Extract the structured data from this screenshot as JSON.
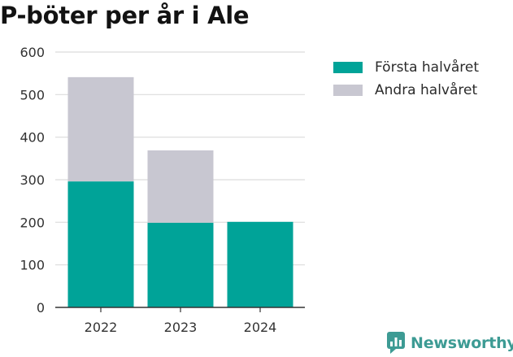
{
  "colors": {
    "first_half": "#00a398",
    "second_half": "#c8c7d1",
    "grid": "#dcdcdc",
    "axis": "#333333",
    "brand": "#3d9b94"
  },
  "chart_data": {
    "type": "bar",
    "stacked": true,
    "title": "P-böter per år i Ale",
    "xlabel": "",
    "ylabel": "",
    "categories": [
      "2022",
      "2023",
      "2024"
    ],
    "series": [
      {
        "name": "Första halvåret",
        "values": [
          296,
          199,
          201
        ]
      },
      {
        "name": "Andra halvåret",
        "values": [
          245,
          170,
          0
        ]
      }
    ],
    "ylim": [
      0,
      600
    ],
    "yticks": [
      0,
      100,
      200,
      300,
      400,
      500,
      600
    ],
    "grid": true,
    "legend_position": "right"
  },
  "brand": {
    "name": "Newsworthy",
    "icon": "newsworthy-logo-icon"
  }
}
